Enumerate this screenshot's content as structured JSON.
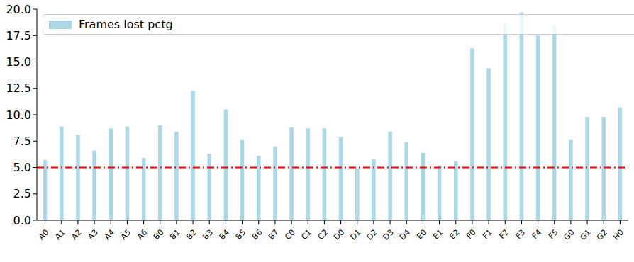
{
  "chart_data": {
    "type": "bar",
    "categories": [
      "A0",
      "A1",
      "A2",
      "A3",
      "A4",
      "A5",
      "A6",
      "B0",
      "B1",
      "B2",
      "B3",
      "B4",
      "B5",
      "B6",
      "B7",
      "C0",
      "C1",
      "C2",
      "D0",
      "D1",
      "D2",
      "D3",
      "D4",
      "E0",
      "E1",
      "E2",
      "F0",
      "F1",
      "F2",
      "F3",
      "F4",
      "F5",
      "G0",
      "G1",
      "G2",
      "H0"
    ],
    "series": [
      {
        "name": "Frames lost pctg",
        "color": "#add8e6",
        "values": [
          5.7,
          8.9,
          8.1,
          6.6,
          8.7,
          8.9,
          5.9,
          9.0,
          8.4,
          12.3,
          6.3,
          10.5,
          7.6,
          6.1,
          7.0,
          8.8,
          8.7,
          8.7,
          7.9,
          4.9,
          5.8,
          8.4,
          7.4,
          6.4,
          5.2,
          5.6,
          16.3,
          14.4,
          18.7,
          19.7,
          17.5,
          18.5,
          7.6,
          9.8,
          9.8,
          10.7
        ]
      }
    ],
    "ylim": [
      0,
      20
    ],
    "yticks": [
      {
        "value": 0,
        "label": "0.0"
      },
      2.5,
      {
        "value": 5,
        "label": "5.0"
      },
      7.5,
      {
        "value": 10,
        "label": "10.0"
      },
      12.5,
      {
        "value": 15,
        "label": "15.0"
      },
      17.5,
      {
        "value": 20,
        "label": "20.0"
      }
    ],
    "grid": false,
    "legend": "upper left",
    "hline": {
      "value": 5,
      "color": "#ff0000",
      "line_style": "dashdot"
    }
  }
}
